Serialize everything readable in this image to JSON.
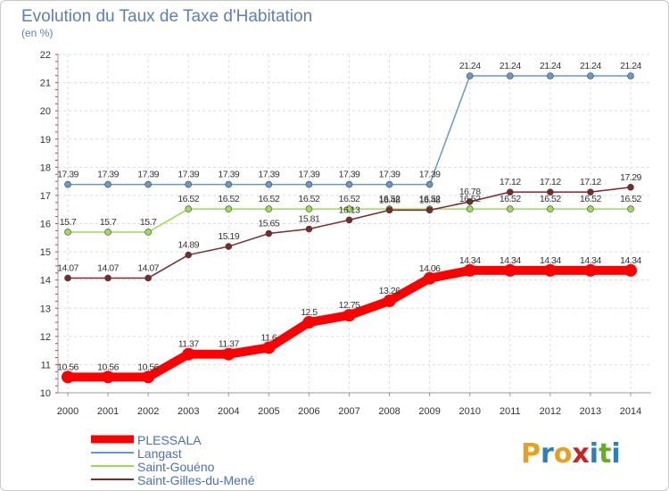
{
  "chart_data": {
    "type": "line",
    "title": "Evolution du Taux de Taxe d'Habitation",
    "subtitle": "(en %)",
    "x": [
      "2000",
      "2001",
      "2002",
      "2003",
      "2004",
      "2005",
      "2006",
      "2007",
      "2008",
      "2009",
      "2010",
      "2011",
      "2012",
      "2013",
      "2014"
    ],
    "ylim": [
      10,
      22
    ],
    "yticks": [
      "10",
      "11",
      "12",
      "13",
      "14",
      "15",
      "16",
      "17",
      "18",
      "19",
      "20",
      "21",
      "22"
    ],
    "grid": true,
    "legend_position": "bottom-left",
    "series": [
      {
        "name": "PLESSALA",
        "color": "#ff0000",
        "values": [
          10.56,
          10.56,
          10.56,
          11.37,
          11.37,
          11.6,
          12.5,
          12.75,
          13.26,
          14.06,
          14.34,
          14.34,
          14.34,
          14.34,
          14.34
        ],
        "labels": [
          "10.56",
          "10.56",
          "10.56",
          "11.37",
          "11.37",
          "11.6",
          "12.5",
          "12.75",
          "13.26",
          "14.06",
          "14.34",
          "14.34",
          "14.34",
          "14.34",
          "14.34"
        ]
      },
      {
        "name": "Langast",
        "color": "#6699cc",
        "values": [
          17.39,
          17.39,
          17.39,
          17.39,
          17.39,
          17.39,
          17.39,
          17.39,
          17.39,
          17.39,
          21.24,
          21.24,
          21.24,
          21.24,
          21.24
        ],
        "labels": [
          "17.39",
          "17.39",
          "17.39",
          "17.39",
          "17.39",
          "17.39",
          "17.39",
          "17.39",
          "17.39",
          "17.39",
          "21.24",
          "21.24",
          "21.24",
          "21.24",
          "21.24"
        ]
      },
      {
        "name": "Saint-Gouéno",
        "color": "#99dd55",
        "values": [
          15.7,
          15.7,
          15.7,
          16.52,
          16.52,
          16.52,
          16.52,
          16.52,
          16.52,
          16.52,
          16.52,
          16.52,
          16.52,
          16.52,
          16.52
        ],
        "labels": [
          "15.7",
          "15.7",
          "15.7",
          "16.52",
          "16.52",
          "16.52",
          "16.52",
          "16.52",
          "16.52",
          "16.52",
          "16.52",
          "16.52",
          "16.52",
          "16.52",
          "16.52"
        ]
      },
      {
        "name": "Saint-Gilles-du-Mené",
        "color": "#7a2a2a",
        "values": [
          14.07,
          14.07,
          14.07,
          14.89,
          15.19,
          15.65,
          15.81,
          16.13,
          16.48,
          16.48,
          16.78,
          17.12,
          17.12,
          17.12,
          17.29
        ],
        "labels": [
          "14.07",
          "14.07",
          "14.07",
          "14.89",
          "15.19",
          "15.65",
          "15.81",
          "16.13",
          "16.48",
          "16.48",
          "16.78",
          "17.12",
          "17.12",
          "17.12",
          "17.29"
        ]
      }
    ]
  },
  "brand": {
    "text": "Proxiti",
    "letters": [
      "P",
      "r",
      "o",
      "x",
      "i",
      "t",
      "i"
    ],
    "colors": [
      "#e8a020",
      "#2a7fc0",
      "#e8a020",
      "#cc2222",
      "#2a7fc0",
      "#6aaa2a",
      "#2a7fc0"
    ]
  }
}
